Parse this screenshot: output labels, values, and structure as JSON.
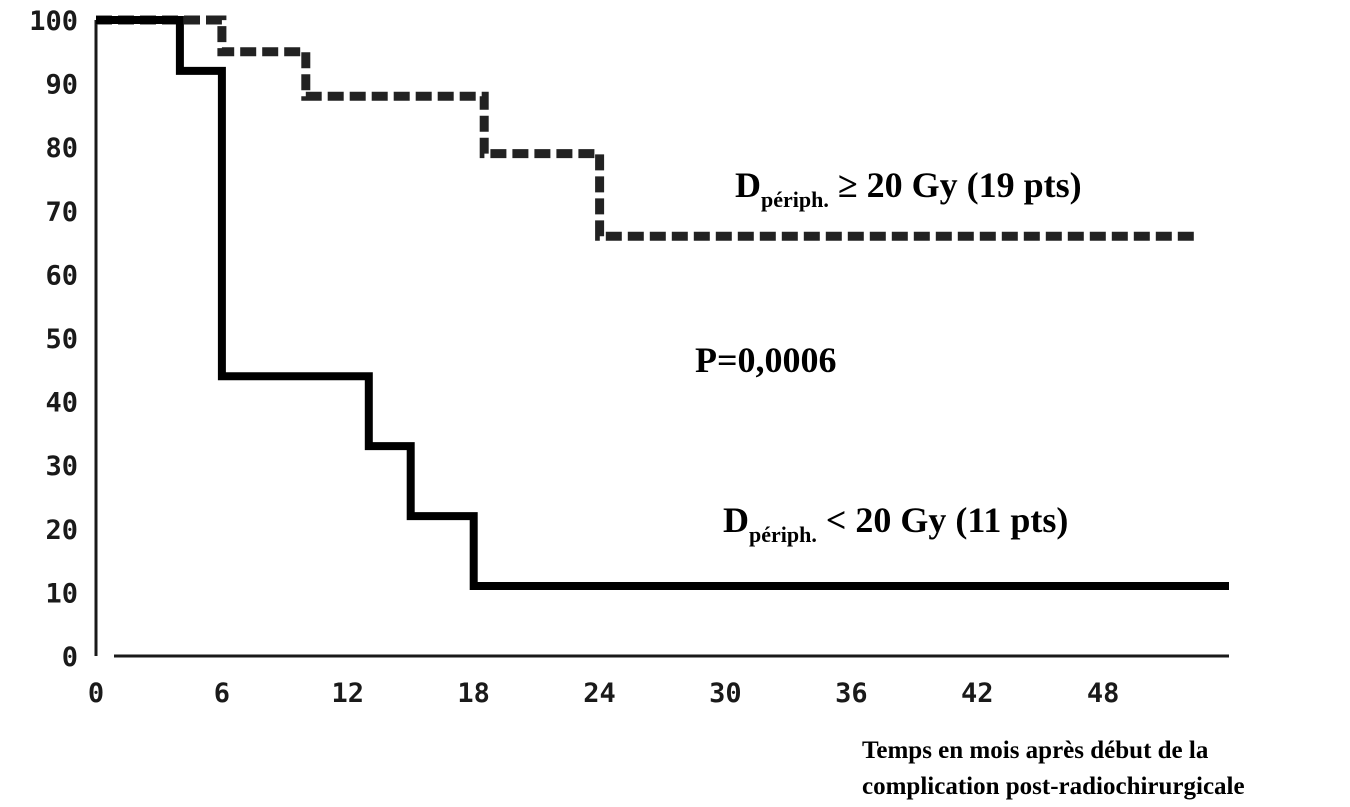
{
  "chart_data": {
    "type": "line",
    "step": true,
    "title": "",
    "xlabel_lines": [
      "Temps en mois après début de la",
      "complication post-radiochirurgicale"
    ],
    "ylabel": "",
    "xlim": [
      0,
      54
    ],
    "ylim": [
      0,
      100
    ],
    "x_ticks": [
      {
        "value": 0,
        "label": "0"
      },
      {
        "value": 6,
        "label": "6"
      },
      {
        "value": 12,
        "label": "12"
      },
      {
        "value": 18,
        "label": "18"
      },
      {
        "value": 24,
        "label": "24"
      },
      {
        "value": 30,
        "label": "30"
      },
      {
        "value": 36,
        "label": "36"
      },
      {
        "value": 42,
        "label": "42"
      },
      {
        "value": 48,
        "label": "48"
      }
    ],
    "y_ticks": [
      {
        "value": 0,
        "label": "0"
      },
      {
        "value": 10,
        "label": "10"
      },
      {
        "value": 20,
        "label": "20"
      },
      {
        "value": 30,
        "label": "30"
      },
      {
        "value": 40,
        "label": "40"
      },
      {
        "value": 50,
        "label": "50"
      },
      {
        "value": 60,
        "label": "60"
      },
      {
        "value": 70,
        "label": "70"
      },
      {
        "value": 80,
        "label": "80"
      },
      {
        "value": 90,
        "label": "90"
      },
      {
        "value": 100,
        "label": "100"
      }
    ],
    "series": [
      {
        "name": "",
        "style": "dashed",
        "color": "#222222",
        "points": [
          [
            0,
            100
          ],
          [
            6,
            100
          ],
          [
            6,
            95
          ],
          [
            10,
            95
          ],
          [
            10,
            88
          ],
          [
            18.5,
            88
          ],
          [
            18.5,
            79
          ],
          [
            24,
            79
          ],
          [
            24,
            66
          ],
          [
            52.5,
            66
          ]
        ]
      },
      {
        "name": "",
        "style": "solid",
        "color": "#000000",
        "points": [
          [
            0,
            100
          ],
          [
            4,
            100
          ],
          [
            4,
            92
          ],
          [
            6,
            92
          ],
          [
            6,
            44
          ],
          [
            13,
            44
          ],
          [
            13,
            33
          ],
          [
            15,
            33
          ],
          [
            15,
            22
          ],
          [
            18,
            22
          ],
          [
            18,
            11
          ],
          [
            54,
            11
          ]
        ]
      }
    ],
    "annotations": {
      "dashed": {
        "main": "D",
        "sub": "périph.",
        "rest": " ≥ 20 Gy (19 pts)"
      },
      "solid": {
        "main": "D",
        "sub": "périph.",
        "rest": " < 20 Gy (11 pts)"
      },
      "p_value": "P=0,0006"
    }
  }
}
